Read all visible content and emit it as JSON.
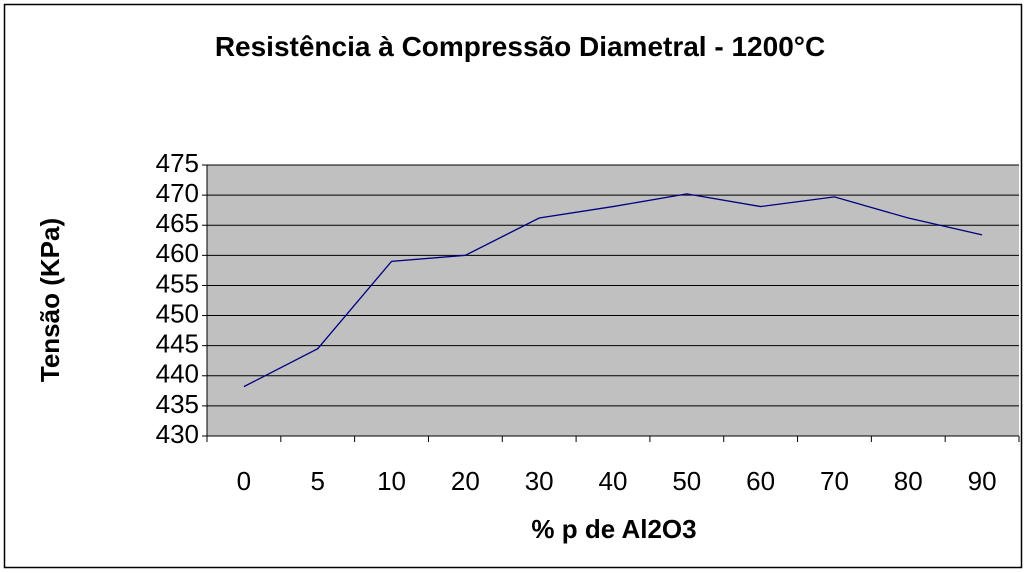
{
  "chart_data": {
    "type": "line",
    "title": "Resistência à Compressão Diametral - 1200°C",
    "x_label": "% p de Al2O3",
    "y_label": "Tensão (KPa)",
    "categories": [
      "0",
      "5",
      "10",
      "20",
      "30",
      "40",
      "50",
      "60",
      "70",
      "80",
      "90"
    ],
    "values": [
      438.2,
      444.5,
      459,
      460,
      466.2,
      468.1,
      470.2,
      468.1,
      469.7,
      466.2,
      463.4
    ],
    "color": "#000080",
    "ylim": [
      430,
      475
    ],
    "yticks": [
      430,
      435,
      440,
      445,
      450,
      455,
      460,
      465,
      470,
      475
    ],
    "grid": true
  }
}
